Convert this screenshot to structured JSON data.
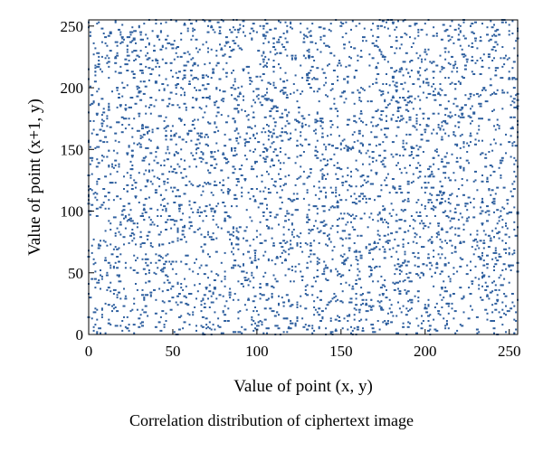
{
  "caption": "Correlation distribution of ciphertext image",
  "chart_data": {
    "type": "scatter",
    "title": "",
    "xlabel": "Value of point (x, y)",
    "ylabel": "Value of point (x+1, y)",
    "xlim": [
      0,
      255
    ],
    "ylim": [
      0,
      255
    ],
    "xticks": [
      "0",
      "50",
      "100",
      "150",
      "200",
      "250"
    ],
    "yticks": [
      "0",
      "50",
      "100",
      "150",
      "200",
      "250"
    ],
    "grid": false,
    "legend": "none",
    "point_color": "#2e5f9e",
    "distribution": "uniform random (about 4000 adjacent-pixel pairs over the full 0–255 range)"
  }
}
